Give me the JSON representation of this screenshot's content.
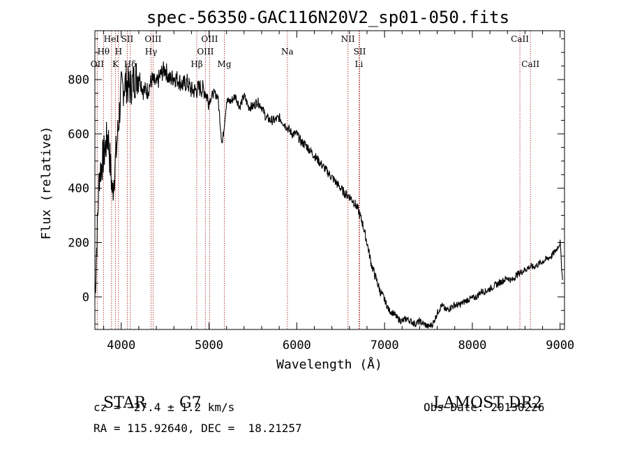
{
  "chart_data": {
    "type": "line",
    "title": "spec-56350-GAC116N20V2_sp01-050.fits",
    "xlabel": "Wavelength (Å)",
    "ylabel": "Flux (relative)",
    "xlim": [
      3700,
      9050
    ],
    "ylim": [
      -120,
      980
    ],
    "xticks": [
      4000,
      5000,
      6000,
      7000,
      8000,
      9000
    ],
    "xtick_labels": [
      "4000",
      "5000",
      "6000",
      "7000",
      "8000",
      "9000"
    ],
    "yticks": [
      0,
      200,
      400,
      600,
      800
    ],
    "ytick_labels": [
      "0",
      "200",
      "400",
      "600",
      "800"
    ],
    "series": [
      {
        "name": "flux",
        "x": [
          3700,
          3750,
          3800,
          3850,
          3900,
          3950,
          4000,
          4050,
          4100,
          4150,
          4200,
          4250,
          4300,
          4350,
          4400,
          4450,
          4500,
          4550,
          4600,
          4650,
          4700,
          4750,
          4800,
          4850,
          4900,
          4950,
          5000,
          5050,
          5100,
          5150,
          5200,
          5250,
          5300,
          5350,
          5400,
          5450,
          5500,
          5550,
          5600,
          5650,
          5700,
          5750,
          5800,
          5850,
          5900,
          5950,
          6000,
          6050,
          6100,
          6150,
          6200,
          6250,
          6300,
          6350,
          6400,
          6450,
          6500,
          6550,
          6600,
          6650,
          6700,
          6750,
          6800,
          6850,
          6900,
          6950,
          7000,
          7050,
          7100,
          7150,
          7200,
          7250,
          7300,
          7350,
          7400,
          7450,
          7500,
          7550,
          7600,
          7650,
          7700,
          7750,
          7800,
          7850,
          7900,
          7950,
          8000,
          8050,
          8100,
          8150,
          8200,
          8250,
          8300,
          8350,
          8400,
          8450,
          8500,
          8550,
          8600,
          8650,
          8700,
          8750,
          8800,
          8850,
          8900,
          8950,
          9000,
          9030
        ],
        "y": [
          0,
          450,
          520,
          600,
          380,
          560,
          760,
          790,
          770,
          800,
          820,
          760,
          760,
          800,
          780,
          820,
          840,
          800,
          810,
          800,
          780,
          790,
          760,
          760,
          770,
          760,
          720,
          750,
          740,
          560,
          720,
          720,
          740,
          700,
          740,
          700,
          700,
          720,
          700,
          660,
          650,
          650,
          660,
          640,
          620,
          600,
          600,
          570,
          560,
          540,
          520,
          500,
          480,
          460,
          440,
          420,
          400,
          380,
          370,
          350,
          320,
          270,
          200,
          120,
          70,
          20,
          -10,
          -50,
          -60,
          -80,
          -90,
          -80,
          -90,
          -100,
          -90,
          -100,
          -110,
          -100,
          -60,
          -30,
          -50,
          -40,
          -30,
          -30,
          -20,
          -10,
          -5,
          0,
          20,
          20,
          30,
          40,
          50,
          60,
          70,
          60,
          80,
          90,
          100,
          110,
          110,
          120,
          130,
          140,
          150,
          170,
          200,
          50
        ]
      }
    ],
    "lines": [
      {
        "name": "OII",
        "wl": 3727,
        "label": "OII",
        "row": 3
      },
      {
        "name": "H-theta",
        "wl": 3798,
        "label": "Hθ",
        "row": 2
      },
      {
        "name": "HeI",
        "wl": 3889,
        "label": "HeI",
        "row": 1
      },
      {
        "name": "K",
        "wl": 3934,
        "label": "K",
        "row": 3
      },
      {
        "name": "H",
        "wl": 3969,
        "label": "H",
        "row": 2
      },
      {
        "name": "SII-4069",
        "wl": 4069,
        "label": "SII",
        "row": 1
      },
      {
        "name": "H-delta",
        "wl": 4102,
        "label": "Hδ",
        "row": 3
      },
      {
        "name": "OIII-4363",
        "wl": 4363,
        "label": "OIII",
        "row": 1
      },
      {
        "name": "H-gamma",
        "wl": 4340,
        "label": "Hγ",
        "row": 2
      },
      {
        "name": "H-beta",
        "wl": 4861,
        "label": "Hβ",
        "row": 3
      },
      {
        "name": "OIII-4959",
        "wl": 4959,
        "label": "OIII",
        "row": 2
      },
      {
        "name": "OIII-5007",
        "wl": 5007,
        "label": "OIII",
        "row": 1
      },
      {
        "name": "Mg",
        "wl": 5175,
        "label": "Mg",
        "row": 3
      },
      {
        "name": "Na",
        "wl": 5893,
        "label": "Na",
        "row": 2
      },
      {
        "name": "NII",
        "wl": 6583,
        "label": "NII",
        "row": 1
      },
      {
        "name": "SII-6717",
        "wl": 6717,
        "label": "SII",
        "row": 2
      },
      {
        "name": "Li",
        "wl": 6708,
        "label": "Li",
        "row": 3
      },
      {
        "name": "CaII-8542",
        "wl": 8542,
        "label": "CaII",
        "row": 1
      },
      {
        "name": "CaII-8662",
        "wl": 8662,
        "label": "CaII",
        "row": 3
      }
    ],
    "colors": {
      "spectrum": "#000000",
      "lines": "#a01818",
      "axes": "#000000"
    }
  },
  "info": {
    "object_class": "STAR",
    "subclass": "G7",
    "survey": "LAMOST DR2",
    "cz": "cz = −27.4 ± 1.2 km/s",
    "obs_date": "Obs−Date: 20130226",
    "coords": "RA = 115.92640, DEC =  18.21257"
  }
}
